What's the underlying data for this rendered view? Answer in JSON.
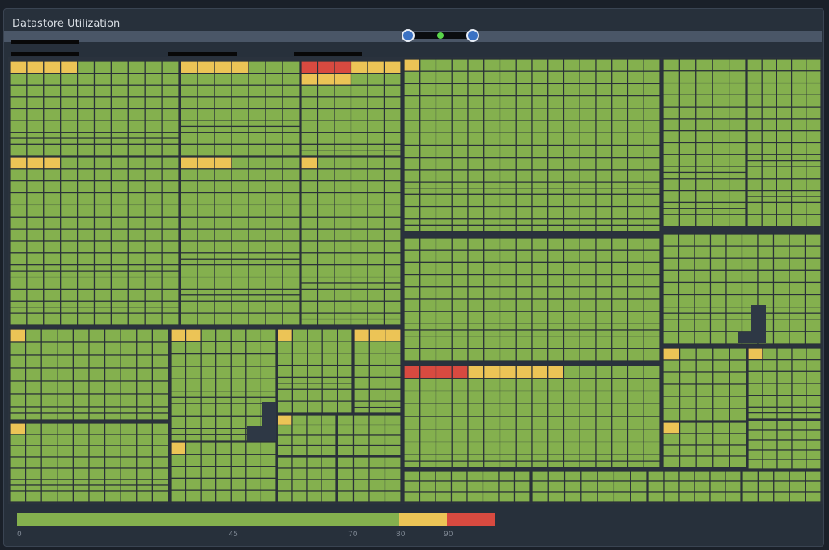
{
  "panel": {
    "title": "Datastore Utilization"
  },
  "colors": {
    "ok": "#84b04e",
    "warn": "#ecc456",
    "crit": "#d84a40",
    "empty": "#2e3845",
    "border": "#2a3138"
  },
  "legend": {
    "stops": [
      {
        "label": "0",
        "value": 0
      },
      {
        "label": "45",
        "value": 45
      },
      {
        "label": "70",
        "value": 70
      },
      {
        "label": "80",
        "value": 80
      },
      {
        "label": "90",
        "value": 90
      }
    ],
    "max": 100
  },
  "treemap": {
    "groups": [
      {
        "rows": 4,
        "cols": 5,
        "warn": 4,
        "crit": 0
      },
      {
        "rows": 4,
        "cols": 5,
        "warn": 4,
        "crit": 0
      },
      {
        "rows": 4,
        "cols": 5,
        "warn": 6,
        "crit": 3
      },
      {
        "rows": 4,
        "cols": 5,
        "warn": 3,
        "crit": 0
      },
      {
        "rows": 4,
        "cols": 5,
        "warn": 3,
        "crit": 0
      },
      {
        "rows": 4,
        "cols": 5,
        "warn": 1,
        "crit": 0
      },
      {
        "rows": 4,
        "cols": 5,
        "warn": 1,
        "crit": 0
      },
      {
        "rows": 4,
        "cols": 5,
        "warn": 2,
        "crit": 0
      },
      {
        "rows": 4,
        "cols": 5,
        "warn": 1,
        "crit": 0
      },
      {
        "rows": 4,
        "cols": 5,
        "warn": 3,
        "crit": 0
      },
      {
        "rows": 4,
        "cols": 5,
        "warn": 1,
        "crit": 0
      },
      {
        "rows": 4,
        "cols": 5,
        "warn": 6,
        "crit": 4
      },
      {
        "rows": 4,
        "cols": 5,
        "warn": 1,
        "crit": 0
      },
      {
        "rows": 4,
        "cols": 5,
        "warn": 1,
        "crit": 0
      },
      {
        "rows": 4,
        "cols": 5,
        "warn": 1,
        "crit": 0
      },
      {
        "rows": 4,
        "cols": 5,
        "warn": 0,
        "crit": 0
      },
      {
        "rows": 4,
        "cols": 5,
        "warn": 0,
        "crit": 0
      },
      {
        "rows": 4,
        "cols": 5,
        "warn": 0,
        "crit": 0
      },
      {
        "rows": 4,
        "cols": 5,
        "warn": 0,
        "crit": 0
      }
    ]
  }
}
